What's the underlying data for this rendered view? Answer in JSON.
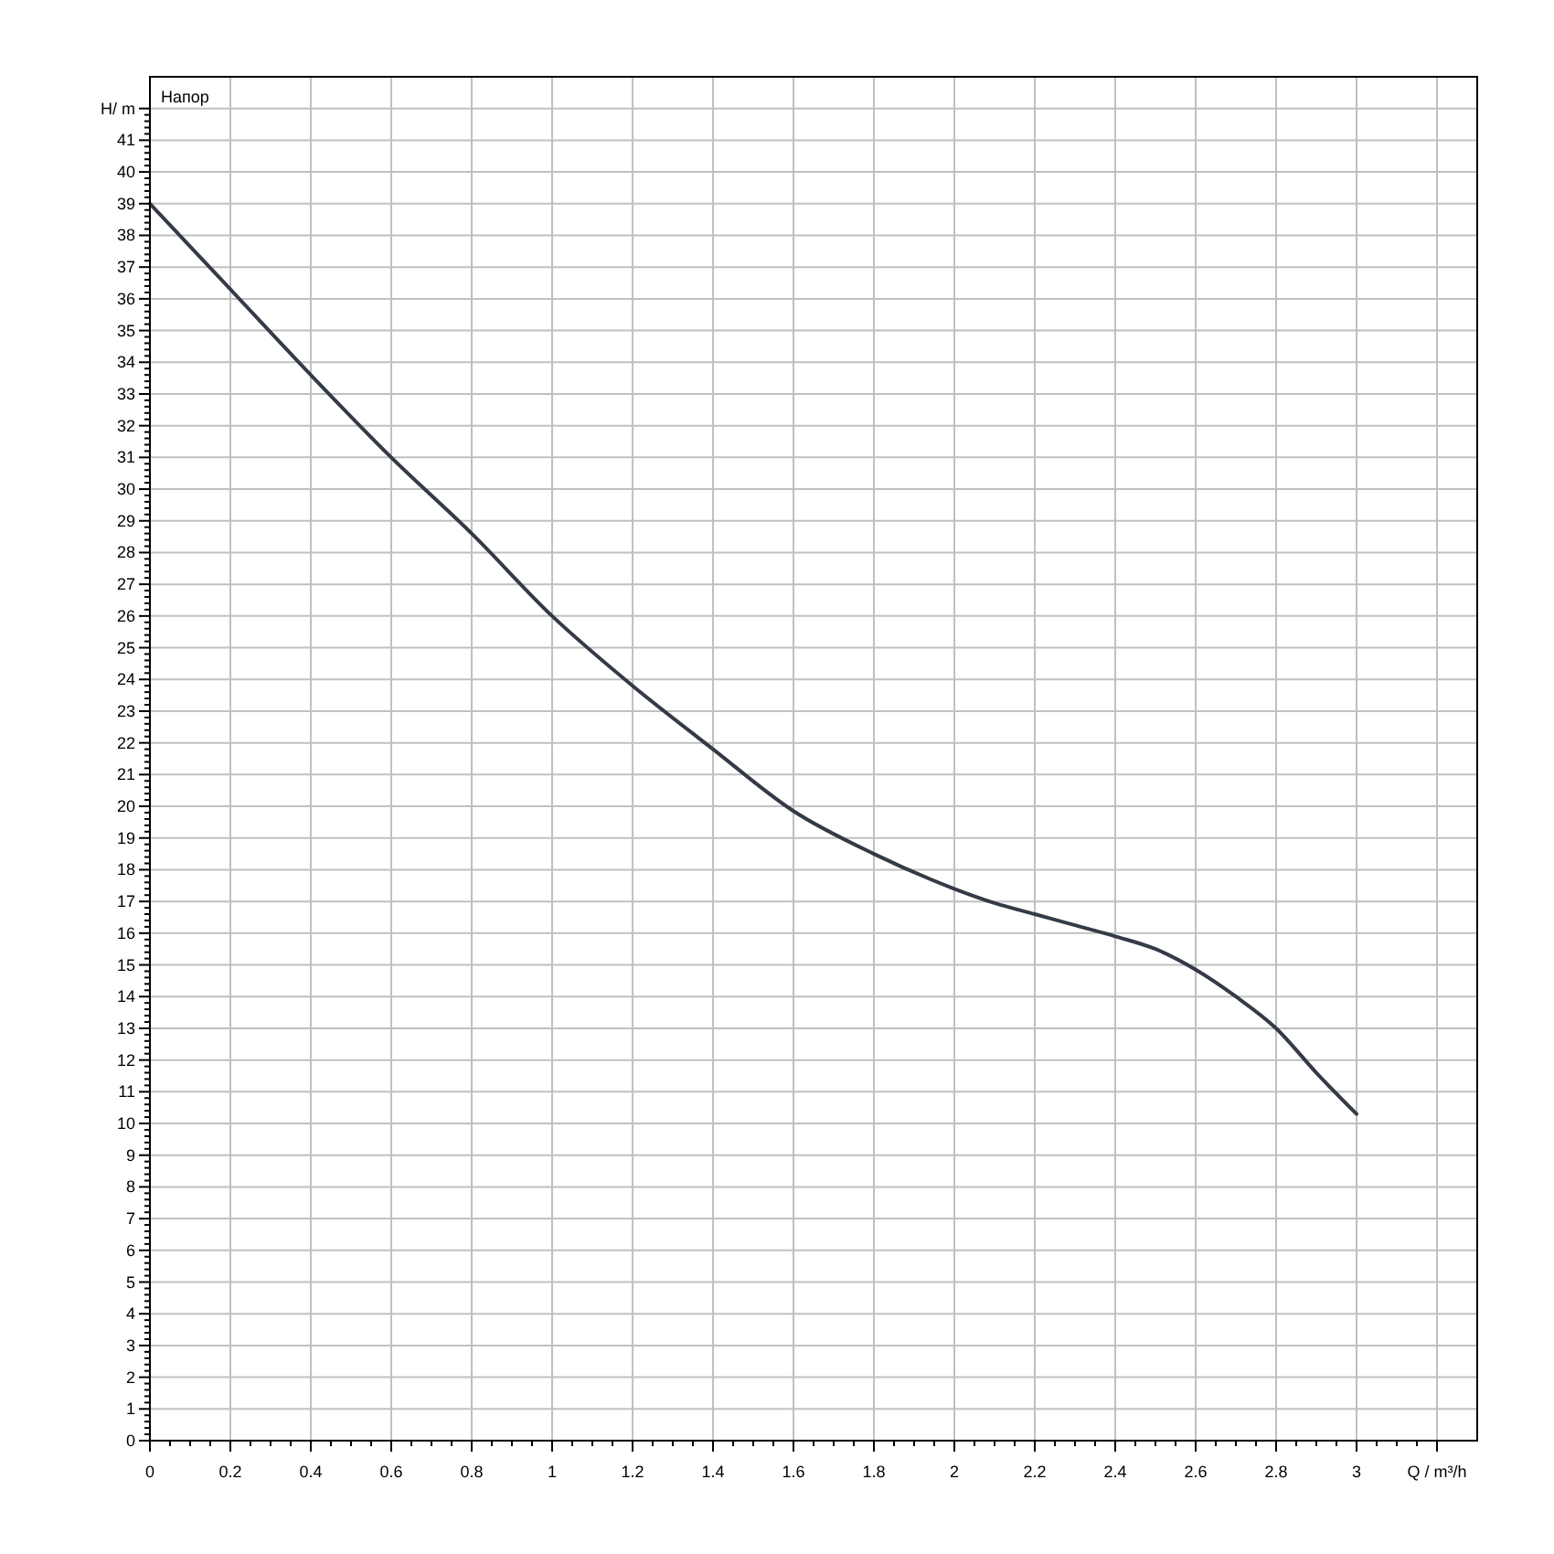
{
  "chart_data": {
    "type": "line",
    "xlabel": "Q / m³/h",
    "ylabel": "H/ m",
    "legend": "top left",
    "grid": true,
    "marker": "none",
    "line_style": "solid",
    "xlim": [
      0,
      3.3
    ],
    "ylim": [
      0,
      43
    ],
    "xticks": [
      0,
      0.2,
      0.4,
      0.6,
      0.8,
      1,
      1.2,
      1.4,
      1.6,
      1.8,
      2,
      2.2,
      2.4,
      2.6,
      2.8,
      3,
      {
        "value": 3.2,
        "label": null
      }
    ],
    "yticks": [
      0,
      1,
      2,
      3,
      4,
      5,
      6,
      7,
      8,
      9,
      10,
      11,
      12,
      13,
      14,
      15,
      16,
      17,
      18,
      19,
      20,
      21,
      22,
      23,
      24,
      25,
      26,
      27,
      28,
      29,
      30,
      31,
      32,
      33,
      34,
      35,
      36,
      37,
      38,
      39,
      40,
      41,
      {
        "value": 42,
        "label": null
      }
    ],
    "series": [
      {
        "name": "Напор",
        "color": "#343b47",
        "x": [
          0,
          0.2,
          0.4,
          0.6,
          0.8,
          1,
          1.2,
          1.4,
          1.6,
          1.8,
          2,
          2.1,
          2.2,
          2.3,
          2.4,
          2.5,
          2.6,
          2.7,
          2.8,
          2.9,
          3
        ],
        "values": [
          39,
          36.3,
          33.6,
          31,
          28.6,
          26,
          23.8,
          21.8,
          19.85,
          18.5,
          17.4,
          16.95,
          16.6,
          16.25,
          15.9,
          15.5,
          14.85,
          14,
          13,
          11.6,
          10.3
        ]
      }
    ]
  }
}
